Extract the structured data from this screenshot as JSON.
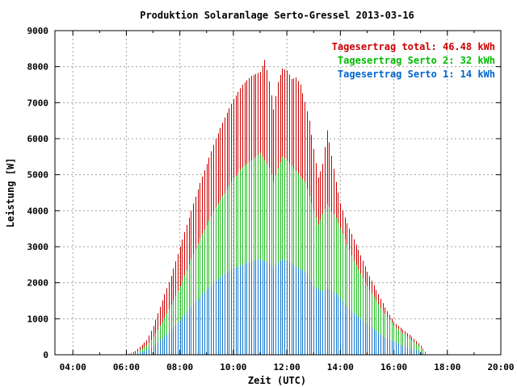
{
  "chart_data": {
    "type": "bar",
    "title": "Produktion Solaranlage Serto-Gressel 2013-03-16",
    "xlabel": "Zeit (UTC)",
    "ylabel": "Leistung [W]",
    "xlim": [
      3.33,
      20.0
    ],
    "ylim": [
      0,
      9000
    ],
    "xticks": [
      4,
      6,
      8,
      10,
      12,
      14,
      16,
      18,
      20
    ],
    "xtick_labels": [
      "04:00",
      "06:00",
      "08:00",
      "10:00",
      "12:00",
      "14:00",
      "16:00",
      "18:00",
      "20:00"
    ],
    "yticks": [
      0,
      1000,
      2000,
      3000,
      4000,
      5000,
      6000,
      7000,
      8000,
      9000
    ],
    "ytick_labels": [
      "0",
      "1000",
      "2000",
      "3000",
      "4000",
      "5000",
      "6000",
      "7000",
      "8000",
      "9000"
    ],
    "grid": true,
    "legend_position": "top-right",
    "legend": [
      {
        "label": "Tagesertrag total: 46.48 kWh",
        "color": "#cc0000"
      },
      {
        "label": "Tagesertrag Serto 2: 32 kWh",
        "color": "#00bb00"
      },
      {
        "label": "Tagesertrag Serto 1: 14 kWh",
        "color": "#0066cc"
      }
    ],
    "series_colors": {
      "total": "#cc0000",
      "serto2": "#22bb22",
      "serto1": "#1177cc"
    },
    "time_resolution_hours": 0.0833,
    "start_hour": 6.0,
    "end_hour": 17.25,
    "anchors": {
      "total": [
        [
          6.0,
          0
        ],
        [
          6.33,
          100
        ],
        [
          6.75,
          400
        ],
        [
          7.0,
          800
        ],
        [
          7.33,
          1500
        ],
        [
          7.67,
          2200
        ],
        [
          8.0,
          3000
        ],
        [
          8.33,
          3800
        ],
        [
          8.67,
          4600
        ],
        [
          9.0,
          5300
        ],
        [
          9.33,
          6000
        ],
        [
          9.67,
          6600
        ],
        [
          10.0,
          7100
        ],
        [
          10.33,
          7500
        ],
        [
          10.67,
          7750
        ],
        [
          11.0,
          7850
        ],
        [
          11.17,
          8200
        ],
        [
          11.33,
          7600
        ],
        [
          11.5,
          6800
        ],
        [
          11.67,
          7600
        ],
        [
          11.83,
          7950
        ],
        [
          12.0,
          7900
        ],
        [
          12.17,
          7650
        ],
        [
          12.33,
          7700
        ],
        [
          12.5,
          7500
        ],
        [
          12.67,
          7000
        ],
        [
          12.83,
          6500
        ],
        [
          13.0,
          5700
        ],
        [
          13.17,
          4900
        ],
        [
          13.33,
          5300
        ],
        [
          13.5,
          6250
        ],
        [
          13.67,
          5500
        ],
        [
          13.83,
          4800
        ],
        [
          14.0,
          4200
        ],
        [
          14.17,
          3800
        ],
        [
          14.33,
          3500
        ],
        [
          14.5,
          3200
        ],
        [
          14.67,
          2900
        ],
        [
          15.0,
          2300
        ],
        [
          15.33,
          1800
        ],
        [
          15.67,
          1300
        ],
        [
          16.0,
          900
        ],
        [
          16.33,
          700
        ],
        [
          16.67,
          500
        ],
        [
          17.0,
          250
        ],
        [
          17.25,
          0
        ]
      ],
      "serto2": [
        [
          6.0,
          0
        ],
        [
          6.33,
          50
        ],
        [
          6.75,
          250
        ],
        [
          7.0,
          500
        ],
        [
          7.33,
          900
        ],
        [
          7.67,
          1400
        ],
        [
          8.0,
          1900
        ],
        [
          8.33,
          2500
        ],
        [
          8.67,
          3100
        ],
        [
          9.0,
          3600
        ],
        [
          9.33,
          4100
        ],
        [
          9.67,
          4500
        ],
        [
          10.0,
          4900
        ],
        [
          10.33,
          5200
        ],
        [
          10.67,
          5400
        ],
        [
          11.0,
          5600
        ],
        [
          11.33,
          5200
        ],
        [
          11.5,
          4800
        ],
        [
          11.67,
          5200
        ],
        [
          11.83,
          5500
        ],
        [
          12.0,
          5400
        ],
        [
          12.33,
          5100
        ],
        [
          12.67,
          4800
        ],
        [
          13.0,
          4000
        ],
        [
          13.17,
          3600
        ],
        [
          13.33,
          3900
        ],
        [
          13.5,
          4200
        ],
        [
          13.83,
          3800
        ],
        [
          14.17,
          3200
        ],
        [
          14.5,
          2600
        ],
        [
          15.0,
          1900
        ],
        [
          15.5,
          1300
        ],
        [
          16.0,
          800
        ],
        [
          16.5,
          500
        ],
        [
          17.0,
          200
        ],
        [
          17.25,
          0
        ]
      ],
      "serto1": [
        [
          6.0,
          0
        ],
        [
          6.33,
          30
        ],
        [
          6.75,
          120
        ],
        [
          7.0,
          250
        ],
        [
          7.33,
          450
        ],
        [
          7.67,
          700
        ],
        [
          8.0,
          950
        ],
        [
          8.33,
          1250
        ],
        [
          8.67,
          1550
        ],
        [
          9.0,
          1800
        ],
        [
          9.33,
          2050
        ],
        [
          9.67,
          2250
        ],
        [
          10.0,
          2400
        ],
        [
          10.33,
          2500
        ],
        [
          10.67,
          2600
        ],
        [
          11.0,
          2650
        ],
        [
          11.33,
          2550
        ],
        [
          11.5,
          2400
        ],
        [
          11.67,
          2550
        ],
        [
          11.83,
          2650
        ],
        [
          12.0,
          2600
        ],
        [
          12.33,
          2450
        ],
        [
          12.67,
          2300
        ],
        [
          13.0,
          1900
        ],
        [
          13.33,
          1750
        ],
        [
          13.5,
          1850
        ],
        [
          13.83,
          1700
        ],
        [
          14.17,
          1400
        ],
        [
          14.5,
          1150
        ],
        [
          15.0,
          850
        ],
        [
          15.5,
          550
        ],
        [
          16.0,
          350
        ],
        [
          16.5,
          200
        ],
        [
          17.0,
          80
        ],
        [
          17.25,
          0
        ]
      ]
    }
  }
}
